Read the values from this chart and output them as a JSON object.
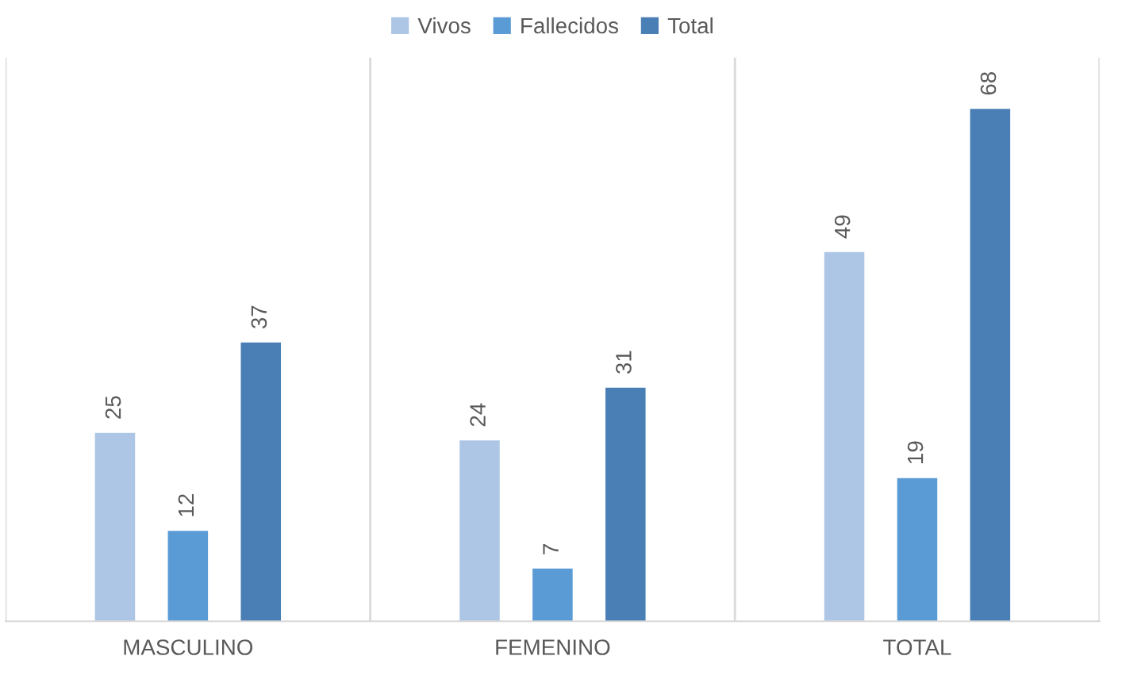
{
  "chart_data": {
    "type": "bar",
    "categories": [
      "MASCULINO",
      "FEMENINO",
      "TOTAL"
    ],
    "series": [
      {
        "name": "Vivos",
        "color": "#aec6e6",
        "values": [
          25,
          24,
          49
        ]
      },
      {
        "name": "Fallecidos",
        "color": "#5b9bd5",
        "values": [
          12,
          7,
          19
        ]
      },
      {
        "name": "Total",
        "color": "#4a7fb5",
        "values": [
          37,
          31,
          68
        ]
      }
    ],
    "data_labels": true,
    "grid": "x",
    "legend": "top"
  }
}
